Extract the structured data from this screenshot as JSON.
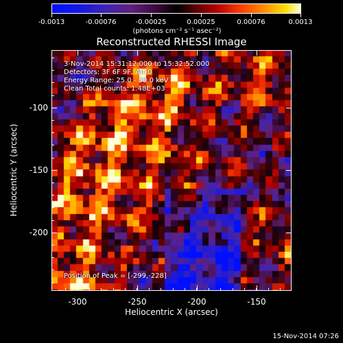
{
  "colorbar": {
    "labels": [
      "-0.0013",
      "-0.00076",
      "-0.00025",
      "0.00025",
      "0.00076",
      "0.0013"
    ],
    "unit": "(photons cm⁻² s⁻¹ asec⁻²)"
  },
  "title": "Reconstructed RHESSI Image",
  "info": {
    "time": "3-Nov-2014 15:31:12.000 to 15:32:52.000",
    "detectors": "Detectors: 3F 6F 9F, Att 0",
    "energy": "Energy Range: 25.0 - 50.0 keV",
    "clean": "Clean    Total counts: 1.48E+03"
  },
  "peak": "Position of Peak = [-299,-228]",
  "axes": {
    "xlabel": "Heliocentric X (arcsec)",
    "ylabel": "Heliocentric Y (arcsec)",
    "xticks": [
      "-300",
      "-250",
      "-200",
      "-150"
    ],
    "yticks": [
      "-100",
      "-150",
      "-200"
    ]
  },
  "timestamp": "15-Nov-2014 07:26"
}
